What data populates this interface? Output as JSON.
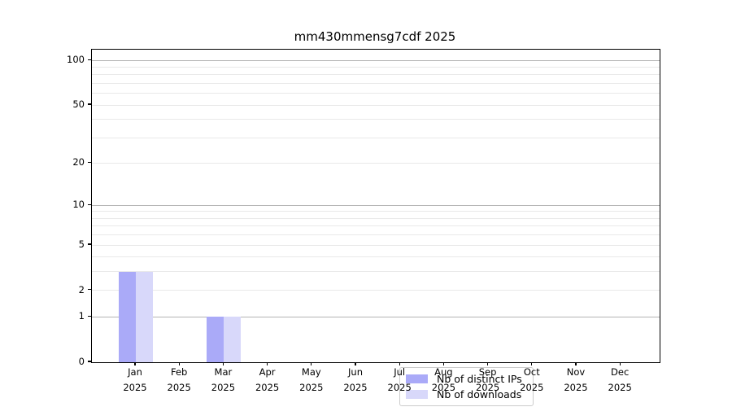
{
  "chart_data": {
    "type": "bar",
    "title": "mm430mmensg7cdf 2025",
    "categories": [
      {
        "month": "Jan",
        "year": "2025"
      },
      {
        "month": "Feb",
        "year": "2025"
      },
      {
        "month": "Mar",
        "year": "2025"
      },
      {
        "month": "Apr",
        "year": "2025"
      },
      {
        "month": "May",
        "year": "2025"
      },
      {
        "month": "Jun",
        "year": "2025"
      },
      {
        "month": "Jul",
        "year": "2025"
      },
      {
        "month": "Aug",
        "year": "2025"
      },
      {
        "month": "Sep",
        "year": "2025"
      },
      {
        "month": "Oct",
        "year": "2025"
      },
      {
        "month": "Nov",
        "year": "2025"
      },
      {
        "month": "Dec",
        "year": "2025"
      }
    ],
    "series": [
      {
        "name": "Nb of distinct IPs",
        "color": "#aaaaf8",
        "values": [
          3,
          0,
          1,
          0,
          0,
          0,
          0,
          0,
          0,
          0,
          0,
          0
        ]
      },
      {
        "name": "Nb of downloads",
        "color": "#d8d8fa",
        "values": [
          3,
          0,
          1,
          0,
          0,
          0,
          0,
          0,
          0,
          0,
          0,
          0
        ]
      }
    ],
    "yscale": "log1p",
    "ylim": [
      0,
      118
    ],
    "y_tick_labels": [
      100,
      50,
      20,
      10,
      5,
      2,
      1,
      0
    ],
    "y_major_gridlines": [
      1,
      10,
      100
    ],
    "y_minor_gridlines": [
      2,
      3,
      4,
      5,
      6,
      7,
      8,
      9,
      20,
      30,
      40,
      50,
      60,
      70,
      80,
      90
    ],
    "grid": "horizontal",
    "legend_position": "lower center",
    "xlabel": "",
    "ylabel": ""
  }
}
